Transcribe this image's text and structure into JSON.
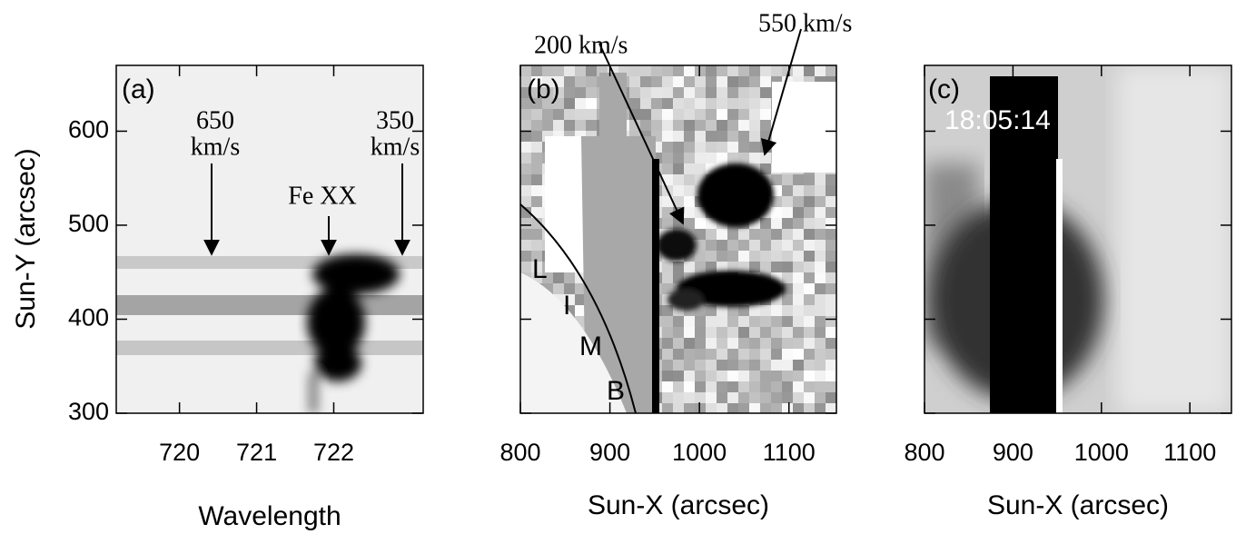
{
  "panels": [
    {
      "label": "(a)",
      "xlabel": "Wavelength",
      "ylabel": "Sun-Y (arcsec)",
      "xlim": [
        719.18,
        723.16
      ],
      "ylim": [
        300,
        670
      ],
      "xticks": [
        720,
        721,
        722
      ],
      "yticks": [
        300,
        400,
        500,
        600
      ],
      "annotations": [
        "650",
        "km/s",
        "350",
        "km/s",
        "Fe XX"
      ]
    },
    {
      "label": "(b)",
      "xlabel": "Sun-X (arcsec)",
      "xlim": [
        800,
        1153
      ],
      "xticks": [
        800,
        900,
        1000,
        1100
      ],
      "annotations": [
        "200 km/s",
        "550 km/s",
        "L",
        "I",
        "M",
        "B"
      ]
    },
    {
      "label": "(c)",
      "xlabel": "Sun-X (arcsec)",
      "xlim": [
        800,
        1147
      ],
      "xticks": [
        800,
        900,
        1000,
        1100
      ],
      "annotations": [
        "18:05:14"
      ]
    }
  ]
}
